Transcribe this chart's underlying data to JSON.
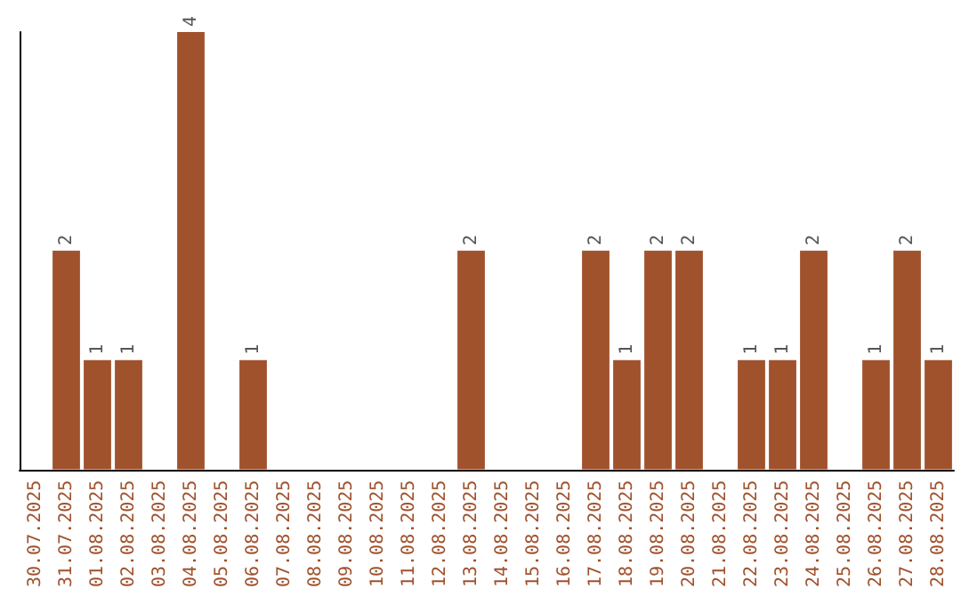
{
  "chart_data": {
    "type": "bar",
    "color": "#a0522d",
    "categories": [
      "30.07.2025",
      "31.07.2025",
      "01.08.2025",
      "02.08.2025",
      "03.08.2025",
      "04.08.2025",
      "05.08.2025",
      "06.08.2025",
      "07.08.2025",
      "08.08.2025",
      "09.08.2025",
      "10.08.2025",
      "11.08.2025",
      "12.08.2025",
      "13.08.2025",
      "14.08.2025",
      "15.08.2025",
      "16.08.2025",
      "17.08.2025",
      "18.08.2025",
      "19.08.2025",
      "20.08.2025",
      "21.08.2025",
      "22.08.2025",
      "23.08.2025",
      "24.08.2025",
      "25.08.2025",
      "26.08.2025",
      "27.08.2025",
      "28.08.2025"
    ],
    "values": [
      0,
      2,
      1,
      1,
      0,
      4,
      0,
      1,
      0,
      0,
      0,
      0,
      0,
      0,
      2,
      0,
      0,
      0,
      2,
      1,
      2,
      2,
      0,
      1,
      1,
      2,
      0,
      1,
      2,
      1
    ],
    "value_labels": [
      null,
      "2",
      "1",
      "1",
      null,
      "4",
      null,
      "1",
      null,
      null,
      null,
      null,
      null,
      null,
      "2",
      null,
      null,
      null,
      "2",
      "1",
      "2",
      "2",
      null,
      "1",
      "1",
      "2",
      null,
      "1",
      "2",
      "1"
    ],
    "tick_labels": "x"
  }
}
